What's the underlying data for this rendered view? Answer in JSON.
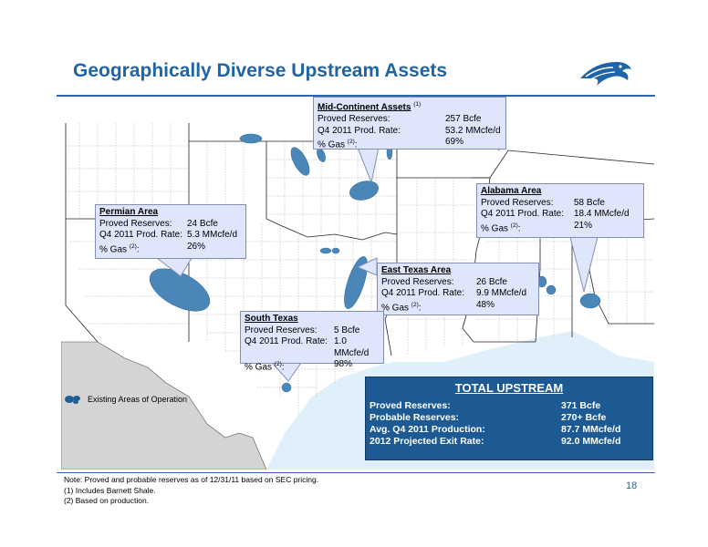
{
  "title": "Geographically Diverse Upstream Assets",
  "colors": {
    "brand_blue": "#1f64a8",
    "asset_blue": "#4a87b8",
    "callout_fill": "#dfe5fb",
    "total_fill": "#1d5a93"
  },
  "logo": {
    "icon": "eagle-head-icon"
  },
  "callouts": {
    "mid_continent": {
      "heading": "Mid-Continent Assets",
      "heading_note": "(1)",
      "rows": [
        {
          "label": "Proved Reserves:",
          "value": "257 Bcfe"
        },
        {
          "label": "Q4 2011 Prod. Rate:",
          "value": "53.2 MMcfe/d"
        },
        {
          "label": "% Gas",
          "label_note": "(2)",
          "label_suffix": ":",
          "value": "69%"
        }
      ]
    },
    "permian": {
      "heading": "Permian Area",
      "rows": [
        {
          "label": "Proved Reserves:",
          "value": "24 Bcfe"
        },
        {
          "label": "Q4 2011 Prod. Rate:",
          "value": "5.3 MMcfe/d"
        },
        {
          "label": "% Gas",
          "label_note": "(2)",
          "label_suffix": ":",
          "value": "26%"
        }
      ]
    },
    "alabama": {
      "heading": "Alabama Area",
      "rows": [
        {
          "label": "Proved Reserves:",
          "value": "58 Bcfe"
        },
        {
          "label": "Q4 2011 Prod. Rate:",
          "value": "18.4 MMcfe/d"
        },
        {
          "label": "% Gas",
          "label_note": "(2)",
          "label_suffix": ":",
          "value": "21%"
        }
      ]
    },
    "east_texas": {
      "heading": "East Texas Area",
      "rows": [
        {
          "label": "Proved Reserves:",
          "value": "26 Bcfe"
        },
        {
          "label": "Q4 2011 Prod. Rate:",
          "value": "9.9 MMcfe/d"
        },
        {
          "label": "% Gas",
          "label_note": "(2)",
          "label_suffix": ":",
          "value": "48%"
        }
      ]
    },
    "south_texas": {
      "heading": "South Texas",
      "rows": [
        {
          "label": "Proved Reserves:",
          "value": "5 Bcfe"
        },
        {
          "label": "Q4 2011 Prod. Rate:",
          "value": "1.0 MMcfe/d"
        },
        {
          "label": "% Gas",
          "label_note": "(2)",
          "label_suffix": ":",
          "value": "98%"
        }
      ]
    }
  },
  "legend": {
    "icon": "asset-blob-icon",
    "label": "Existing Areas of Operation"
  },
  "total": {
    "heading": "TOTAL  UPSTREAM",
    "rows": [
      {
        "label": "Proved Reserves:",
        "value": "371 Bcfe"
      },
      {
        "label": "Probable Reserves:",
        "value": "270+ Bcfe"
      },
      {
        "label": "Avg. Q4 2011 Production:",
        "value": "87.7 MMcfe/d"
      },
      {
        "label": "2012 Projected Exit Rate:",
        "value": "92.0 MMcfe/d"
      }
    ]
  },
  "notes": [
    "Note:  Proved and probable reserves as of 12/31/11 based on SEC pricing.",
    "(1)   Includes Barnett Shale.",
    "(2)   Based on production."
  ],
  "page_number": "18"
}
